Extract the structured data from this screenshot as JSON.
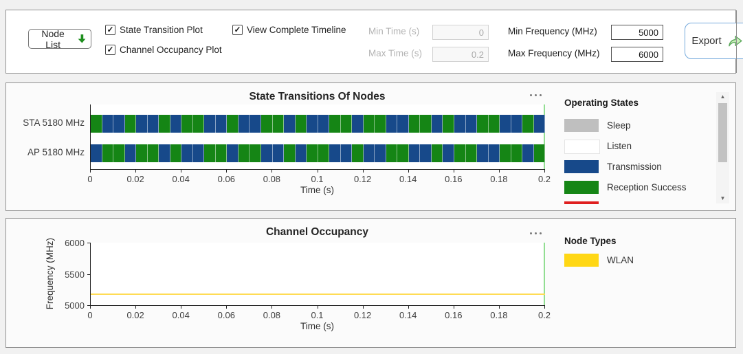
{
  "toolbar": {
    "node_list_label": "Node List",
    "checkboxes": [
      {
        "label": "State Transition Plot",
        "checked": true
      },
      {
        "label": "Channel Occupancy Plot",
        "checked": true
      },
      {
        "label": "View Complete Timeline",
        "checked": true
      }
    ],
    "fields": [
      {
        "label": "Min Time (s)",
        "value": "0",
        "disabled": true
      },
      {
        "label": "Max Time (s)",
        "value": "0.2",
        "disabled": true
      },
      {
        "label": "Min Frequency (MHz)",
        "value": "5000",
        "disabled": false
      },
      {
        "label": "Max Frequency (MHz)",
        "value": "6000",
        "disabled": false
      }
    ],
    "export_label": "Export"
  },
  "ui_colors": {
    "time_cursor_green": "#92DE92",
    "export_border_blue": "#74A9DC",
    "node_list_arrow_green": "#1E8F1E",
    "export_arrow_green_fill": "#CBEFBB",
    "export_arrow_green_stroke": "#5CA85C"
  },
  "chart_data": [
    {
      "type": "bar",
      "variant": "horizontal-state-timeline",
      "title": "State Transitions Of Nodes",
      "xlabel": "Time (s)",
      "xlim": [
        0,
        0.2
      ],
      "x_ticks": [
        "0",
        "0.02",
        "0.04",
        "0.06",
        "0.08",
        "0.1",
        "0.12",
        "0.14",
        "0.16",
        "0.18",
        "0.2"
      ],
      "cell_duration_s": 0.005,
      "cursor_time_s": 0.2,
      "state_colors": {
        "G": "#158515",
        "B": "#17498A"
      },
      "state_names": {
        "G": "Reception Success",
        "B": "Transmission"
      },
      "rows": [
        {
          "label": "STA 5180 MHz",
          "cells": "GBBGBBGBGGBBGBBGGBGBBGGBGGBBGGBGBBGGBBGB"
        },
        {
          "label": "AP 5180 MHz",
          "cells": "BGGBGGBGBBGGBGGBBGBGGBBGBBGGBBGBGGBBGGBG"
        }
      ],
      "legend_title": "Operating States",
      "legend": [
        {
          "label": "Sleep",
          "color": "#BFBFBF"
        },
        {
          "label": "Listen",
          "color": "#FFFFFF"
        },
        {
          "label": "Transmission",
          "color": "#17498A"
        },
        {
          "label": "Reception Success",
          "color": "#158515"
        },
        {
          "label": "",
          "color": "#DF1F1F",
          "partial": true
        }
      ]
    },
    {
      "type": "line",
      "title": "Channel Occupancy",
      "xlabel": "Time (s)",
      "ylabel": "Frequency (MHz)",
      "xlim": [
        0,
        0.2
      ],
      "ylim": [
        5000,
        6000
      ],
      "x_ticks": [
        "0",
        "0.02",
        "0.04",
        "0.06",
        "0.08",
        "0.1",
        "0.12",
        "0.14",
        "0.16",
        "0.18",
        "0.2"
      ],
      "y_ticks": [
        "5000",
        "5500",
        "6000"
      ],
      "cursor_time_s": 0.2,
      "series": [
        {
          "name": "WLAN",
          "color": "#FFD715",
          "line_color": "#FFDC55",
          "y_mhz": 5180,
          "x_start": 0,
          "x_end": 0.2
        }
      ],
      "legend_title": "Node Types",
      "legend": [
        {
          "label": "WLAN",
          "color": "#FFD715"
        }
      ]
    }
  ]
}
